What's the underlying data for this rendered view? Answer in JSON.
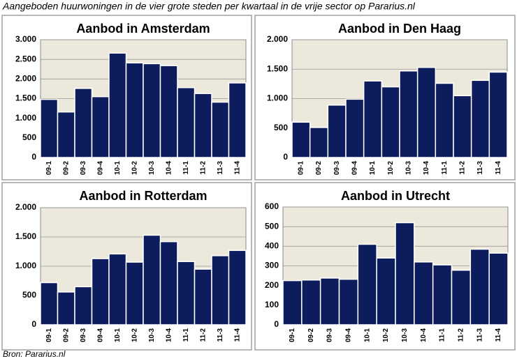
{
  "header": "Aangeboden huurwoningen in de vier grote steden per kwartaal in de vrije sector op Pararius.nl",
  "source": "Bron: Pararius.nl",
  "chart_data": [
    {
      "type": "bar",
      "title": "Aanbod in Amsterdam",
      "categories": [
        "09-1",
        "09-2",
        "09-3",
        "09-4",
        "10-1",
        "10-2",
        "10-3",
        "10-4",
        "11-1",
        "11-2",
        "11-3",
        "11-4"
      ],
      "values": [
        1480,
        1160,
        1760,
        1550,
        2660,
        2410,
        2390,
        2340,
        1780,
        1630,
        1410,
        1900
      ],
      "color": "#0c1c5c",
      "ylim": [
        0,
        3000
      ],
      "yticks": [
        0,
        500,
        {
          "value": 1000,
          "label": "1.000"
        },
        {
          "value": 1500,
          "label": "1.500"
        },
        {
          "value": 2000,
          "label": "2.000"
        },
        {
          "value": 2500,
          "label": "2.500"
        },
        {
          "value": 3000,
          "label": "3.000"
        }
      ],
      "grid": true
    },
    {
      "type": "bar",
      "title": "Aanbod in Den Haag",
      "categories": [
        "09-1",
        "09-2",
        "09-3",
        "09-4",
        "10-1",
        "10-2",
        "10-3",
        "10-4",
        "11-1",
        "11-2",
        "11-3",
        "11-4"
      ],
      "values": [
        600,
        510,
        890,
        990,
        1300,
        1200,
        1470,
        1530,
        1260,
        1050,
        1310,
        1450
      ],
      "color": "#0c1c5c",
      "ylim": [
        0,
        2000
      ],
      "yticks": [
        0,
        500,
        {
          "value": 1000,
          "label": "1.000"
        },
        {
          "value": 1500,
          "label": "1.500"
        },
        {
          "value": 2000,
          "label": "2.000"
        }
      ],
      "grid": true
    },
    {
      "type": "bar",
      "title": "Aanbod in Rotterdam",
      "categories": [
        "09-1",
        "09-2",
        "09-3",
        "09-4",
        "10-1",
        "10-2",
        "10-3",
        "10-4",
        "11-1",
        "11-2",
        "11-3",
        "11-4"
      ],
      "values": [
        720,
        560,
        650,
        1130,
        1210,
        1070,
        1530,
        1420,
        1080,
        950,
        1180,
        1270
      ],
      "color": "#0c1c5c",
      "ylim": [
        0,
        2000
      ],
      "yticks": [
        0,
        500,
        {
          "value": 1000,
          "label": "1.000"
        },
        {
          "value": 1500,
          "label": "1.500"
        },
        {
          "value": 2000,
          "label": "2.000"
        }
      ],
      "grid": true
    },
    {
      "type": "bar",
      "title": "Aanbod in Utrecht",
      "categories": [
        "09-1",
        "09-2",
        "09-3",
        "09-4",
        "10-1",
        "10-2",
        "10-3",
        "10-4",
        "11-1",
        "11-2",
        "11-3",
        "11-4"
      ],
      "values": [
        225,
        228,
        238,
        232,
        410,
        340,
        520,
        320,
        305,
        278,
        385,
        365
      ],
      "color": "#0c1c5c",
      "ylim": [
        0,
        600
      ],
      "yticks": [
        0,
        100,
        200,
        300,
        400,
        500,
        600
      ],
      "grid": true
    }
  ]
}
